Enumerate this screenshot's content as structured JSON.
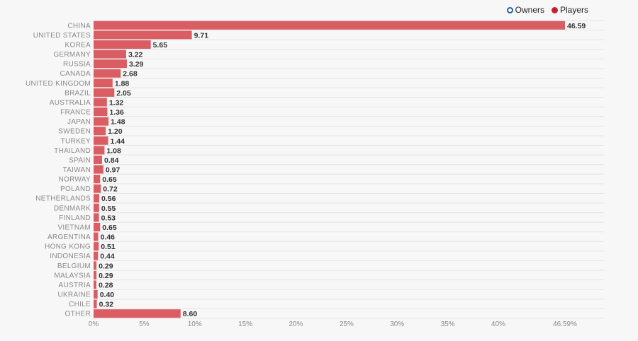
{
  "legend": {
    "owners_label": "Owners",
    "players_label": "Players",
    "owners_color": "#1a5fa0",
    "players_color": "#c8202e"
  },
  "chart_data": {
    "type": "bar",
    "orientation": "horizontal",
    "categories": [
      "CHINA",
      "UNITED STATES",
      "KOREA",
      "GERMANY",
      "RUSSIA",
      "CANADA",
      "UNITED KINGDOM",
      "BRAZIL",
      "AUSTRALIA",
      "FRANCE",
      "JAPAN",
      "SWEDEN",
      "TURKEY",
      "THAILAND",
      "SPAIN",
      "TAIWAN",
      "NORWAY",
      "POLAND",
      "NETHERLANDS",
      "DENMARK",
      "FINLAND",
      "VIETNAM",
      "ARGENTINA",
      "HONG KONG",
      "INDONESIA",
      "BELGIUM",
      "MALAYSIA",
      "AUSTRIA",
      "UKRAINE",
      "CHILE",
      "OTHER"
    ],
    "series": [
      {
        "name": "Players",
        "values": [
          46.59,
          9.71,
          5.65,
          3.22,
          3.29,
          2.68,
          1.88,
          2.05,
          1.32,
          1.36,
          1.48,
          1.2,
          1.44,
          1.08,
          0.84,
          0.97,
          0.65,
          0.72,
          0.56,
          0.55,
          0.53,
          0.65,
          0.46,
          0.51,
          0.44,
          0.29,
          0.29,
          0.28,
          0.4,
          0.32,
          8.6
        ],
        "labels": [
          "46.59",
          "9.71",
          "5.65",
          "3.22",
          "3.29",
          "2.68",
          "1.88",
          "2.05",
          "1.32",
          "1.36",
          "1.48",
          "1.20",
          "1.44",
          "1.08",
          "0.84",
          "0.97",
          "0.65",
          "0.72",
          "0.56",
          "0.55",
          "0.53",
          "0.65",
          "0.46",
          "0.51",
          "0.44",
          "0.29",
          "0.29",
          "0.28",
          "0.40",
          "0.32",
          "8.60"
        ]
      }
    ],
    "x_ticks": [
      0,
      5,
      10,
      15,
      20,
      25,
      30,
      35,
      40,
      46.59
    ],
    "x_tick_labels": [
      "0%",
      "5%",
      "10%",
      "15%",
      "20%",
      "25%",
      "30%",
      "35%",
      "40%",
      "46.59%"
    ],
    "xlim": [
      0,
      46.59
    ],
    "bar_color": "#db5d64",
    "grid": true,
    "legend_position": "top-right"
  }
}
